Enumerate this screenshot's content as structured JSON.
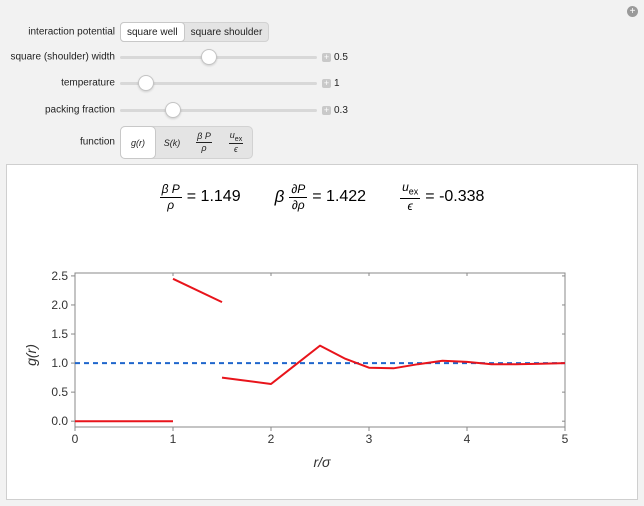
{
  "controls": {
    "interaction_potential": {
      "label": "interaction potential",
      "options": [
        "square well",
        "square shoulder"
      ],
      "selected": "square well"
    },
    "width": {
      "label": "square (shoulder) width",
      "value": "0.5",
      "fraction": 0.45
    },
    "temperature": {
      "label": "temperature",
      "value": "1",
      "fraction": 0.13
    },
    "packing": {
      "label": "packing fraction",
      "value": "0.3",
      "fraction": 0.27
    },
    "function": {
      "label": "function",
      "options": [
        {
          "id": "g",
          "text": "g(r)"
        },
        {
          "id": "s",
          "text": "S(k)"
        },
        {
          "id": "p",
          "num": "β P",
          "den": "ρ"
        },
        {
          "id": "u",
          "num": "u",
          "num_sub": "ex",
          "den": "ϵ"
        }
      ],
      "selected": "g"
    }
  },
  "equations": {
    "e1": {
      "num": "β P",
      "den": "ρ",
      "value": "= 1.149"
    },
    "e2": {
      "prefix": "β",
      "num": "∂P",
      "den": "∂ρ",
      "value": "= 1.422"
    },
    "e3": {
      "num": "u",
      "num_sub": "ex",
      "den": "ϵ",
      "value": "= -0.338"
    }
  },
  "chart_data": {
    "type": "line",
    "xlabel": "r/σ",
    "ylabel": "g(r)",
    "xlim": [
      0,
      5
    ],
    "ylim": [
      -0.1,
      2.55
    ],
    "xticks": [
      "0",
      "1",
      "2",
      "3",
      "4",
      "5"
    ],
    "yticks": [
      "0.0",
      "0.5",
      "1.0",
      "1.5",
      "2.0",
      "2.5"
    ],
    "reference_line": {
      "y": 1.0,
      "style": "dashed",
      "color": "#1f66cc"
    },
    "series": [
      {
        "color": "#e8141b",
        "segments": [
          [
            [
              0,
              0
            ],
            [
              1,
              0
            ]
          ],
          [
            [
              1,
              2.45
            ],
            [
              1.5,
              2.05
            ]
          ],
          [
            [
              1.5,
              0.75
            ],
            [
              2.0,
              0.64
            ],
            [
              2.25,
              0.97
            ],
            [
              2.5,
              1.3
            ],
            [
              2.75,
              1.08
            ],
            [
              3.0,
              0.92
            ],
            [
              3.25,
              0.91
            ],
            [
              3.5,
              0.98
            ],
            [
              3.75,
              1.04
            ],
            [
              4.0,
              1.02
            ],
            [
              4.25,
              0.98
            ],
            [
              4.5,
              0.98
            ],
            [
              4.75,
              0.99
            ],
            [
              5.0,
              1.0
            ]
          ]
        ]
      }
    ]
  }
}
